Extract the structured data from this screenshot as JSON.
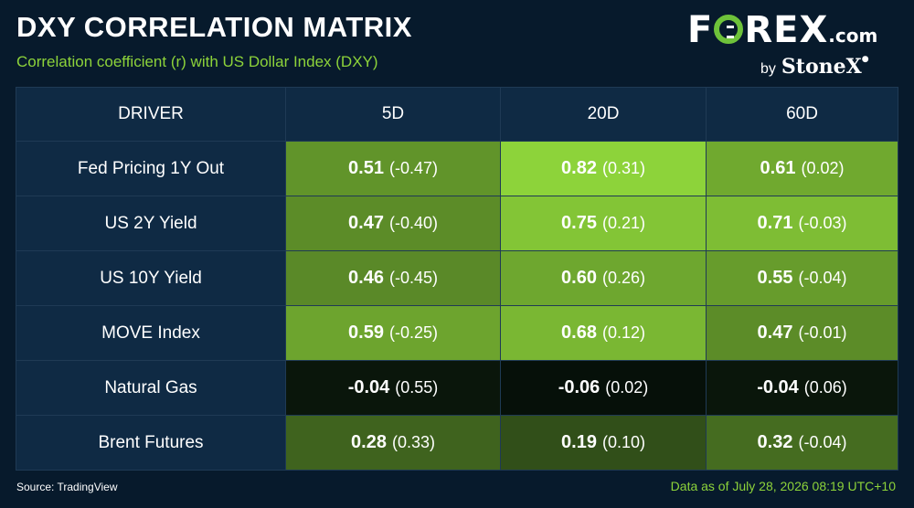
{
  "title": "DXY CORRELATION MATRIX",
  "subtitle": "Correlation coefficient (r) with US Dollar Index (DXY)",
  "logo": {
    "brand_pre": "F",
    "brand_post": "REX",
    "suffix": ".com",
    "by": "by",
    "parent": "StoneX"
  },
  "footer": {
    "source": "Source: TradingView",
    "as_of": "Data as of July 28, 2026 08:19 UTC+10"
  },
  "colors": {
    "background": "#071a2c",
    "header_fill": "#0f2a44",
    "accent": "#8dd33a",
    "high": "#8dd33a",
    "low": "#061009"
  },
  "chart_data": {
    "type": "heatmap",
    "title": "DXY CORRELATION MATRIX",
    "columns": [
      "DRIVER",
      "5D",
      "20D",
      "60D"
    ],
    "rows": [
      {
        "driver": "Fed Pricing 1Y Out",
        "values": [
          0.51,
          0.82,
          0.61
        ],
        "secondary": [
          "(-0.47)",
          "(0.31)",
          "(0.02)"
        ]
      },
      {
        "driver": "US 2Y Yield",
        "values": [
          0.47,
          0.75,
          0.71
        ],
        "secondary": [
          "(-0.40)",
          "(0.21)",
          "(-0.03)"
        ]
      },
      {
        "driver": "US 10Y Yield",
        "values": [
          0.46,
          0.6,
          0.55
        ],
        "secondary": [
          "(-0.45)",
          "(0.26)",
          "(-0.04)"
        ]
      },
      {
        "driver": "MOVE Index",
        "values": [
          0.59,
          0.68,
          0.47
        ],
        "secondary": [
          "(-0.25)",
          "(0.12)",
          "(-0.01)"
        ]
      },
      {
        "driver": "Natural Gas",
        "values": [
          -0.04,
          -0.06,
          -0.04
        ],
        "secondary": [
          "(0.55)",
          "(0.02)",
          "(0.06)"
        ]
      },
      {
        "driver": "Brent Futures",
        "values": [
          0.28,
          0.19,
          0.32
        ],
        "secondary": [
          "(0.33)",
          "(0.10)",
          "(-0.04)"
        ]
      }
    ]
  }
}
